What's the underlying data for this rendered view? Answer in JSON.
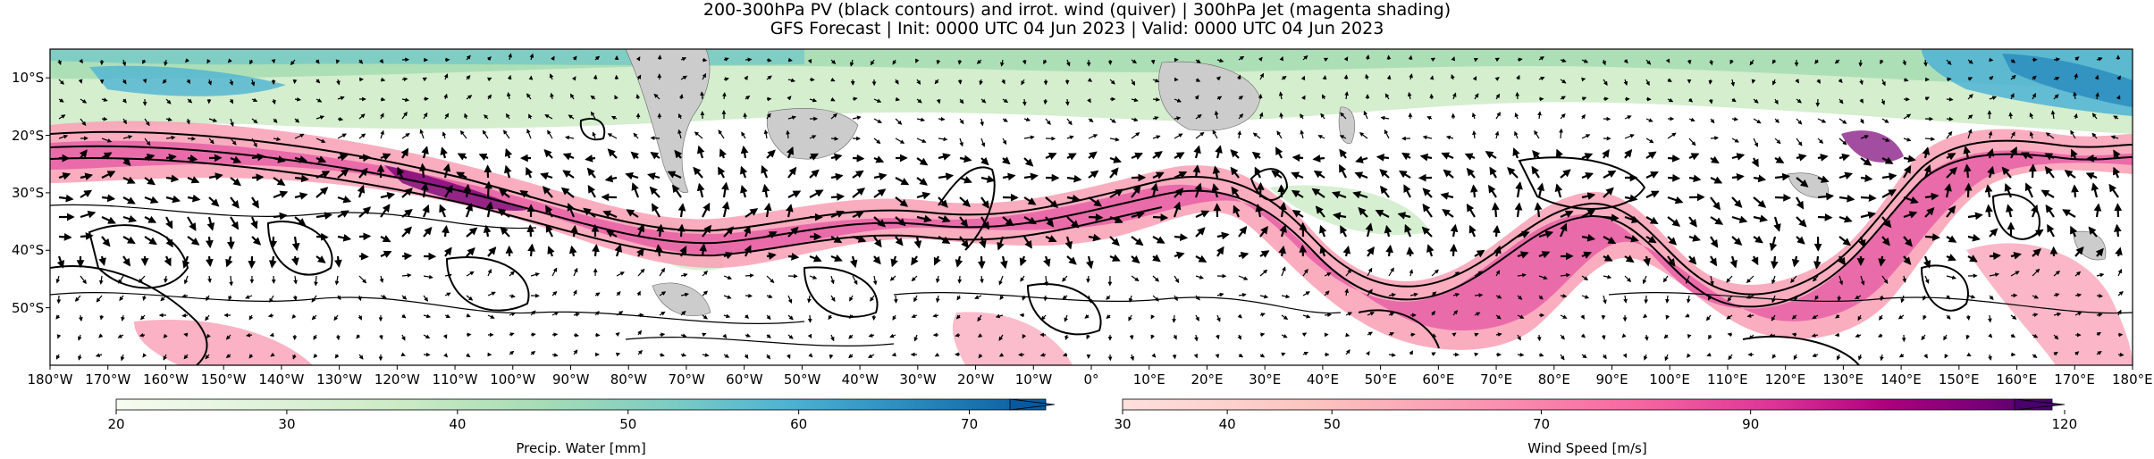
{
  "header": {
    "title": "200-300hPa PV (black contours) and irrot. wind (quiver) | 300hPa Jet (magenta shading)",
    "subtitle": "GFS Forecast | Init: 0000 UTC 04 Jun 2023 | Valid: 0000 UTC 04 Jun 2023"
  },
  "map": {
    "projection": "PlateCarree",
    "lon_range": [
      -180,
      180
    ],
    "lat_range": [
      -60,
      -5
    ],
    "lon_ticks": [
      "180°W",
      "170°W",
      "160°W",
      "150°W",
      "140°W",
      "130°W",
      "120°W",
      "110°W",
      "100°W",
      "90°W",
      "80°W",
      "70°W",
      "60°W",
      "50°W",
      "40°W",
      "30°W",
      "20°W",
      "10°W",
      "0°",
      "10°E",
      "20°E",
      "30°E",
      "40°E",
      "50°E",
      "60°E",
      "70°E",
      "80°E",
      "90°E",
      "100°E",
      "110°E",
      "120°E",
      "130°E",
      "140°E",
      "150°E",
      "160°E",
      "170°E",
      "180°E"
    ],
    "lat_ticks": [
      "10°S",
      "20°S",
      "30°S",
      "40°S",
      "50°S"
    ],
    "layers": [
      "precipitable water shading",
      "300hPa jet magenta shading",
      "PV black contours",
      "irrotational wind quiver",
      "land mask gray"
    ]
  },
  "colorbars": [
    {
      "label": "Precip. Water [mm]",
      "ticks": [
        "20",
        "30",
        "40",
        "50",
        "60",
        "70"
      ],
      "range": [
        20,
        75
      ],
      "colors": [
        "#f7fcf0",
        "#e0f3db",
        "#ccebc5",
        "#a8ddb5",
        "#7bccc4",
        "#4eb3d3",
        "#2b8cbe",
        "#0868ac",
        "#084081"
      ]
    },
    {
      "label": "Wind Speed [m/s]",
      "ticks": [
        "30",
        "40",
        "50",
        "70",
        "90",
        "120"
      ],
      "range": [
        30,
        120
      ],
      "colors": [
        "#fde0dd",
        "#fcc5c0",
        "#fa9fb5",
        "#f768a1",
        "#dd3497",
        "#ae017e",
        "#7a0177",
        "#49006a"
      ]
    }
  ]
}
